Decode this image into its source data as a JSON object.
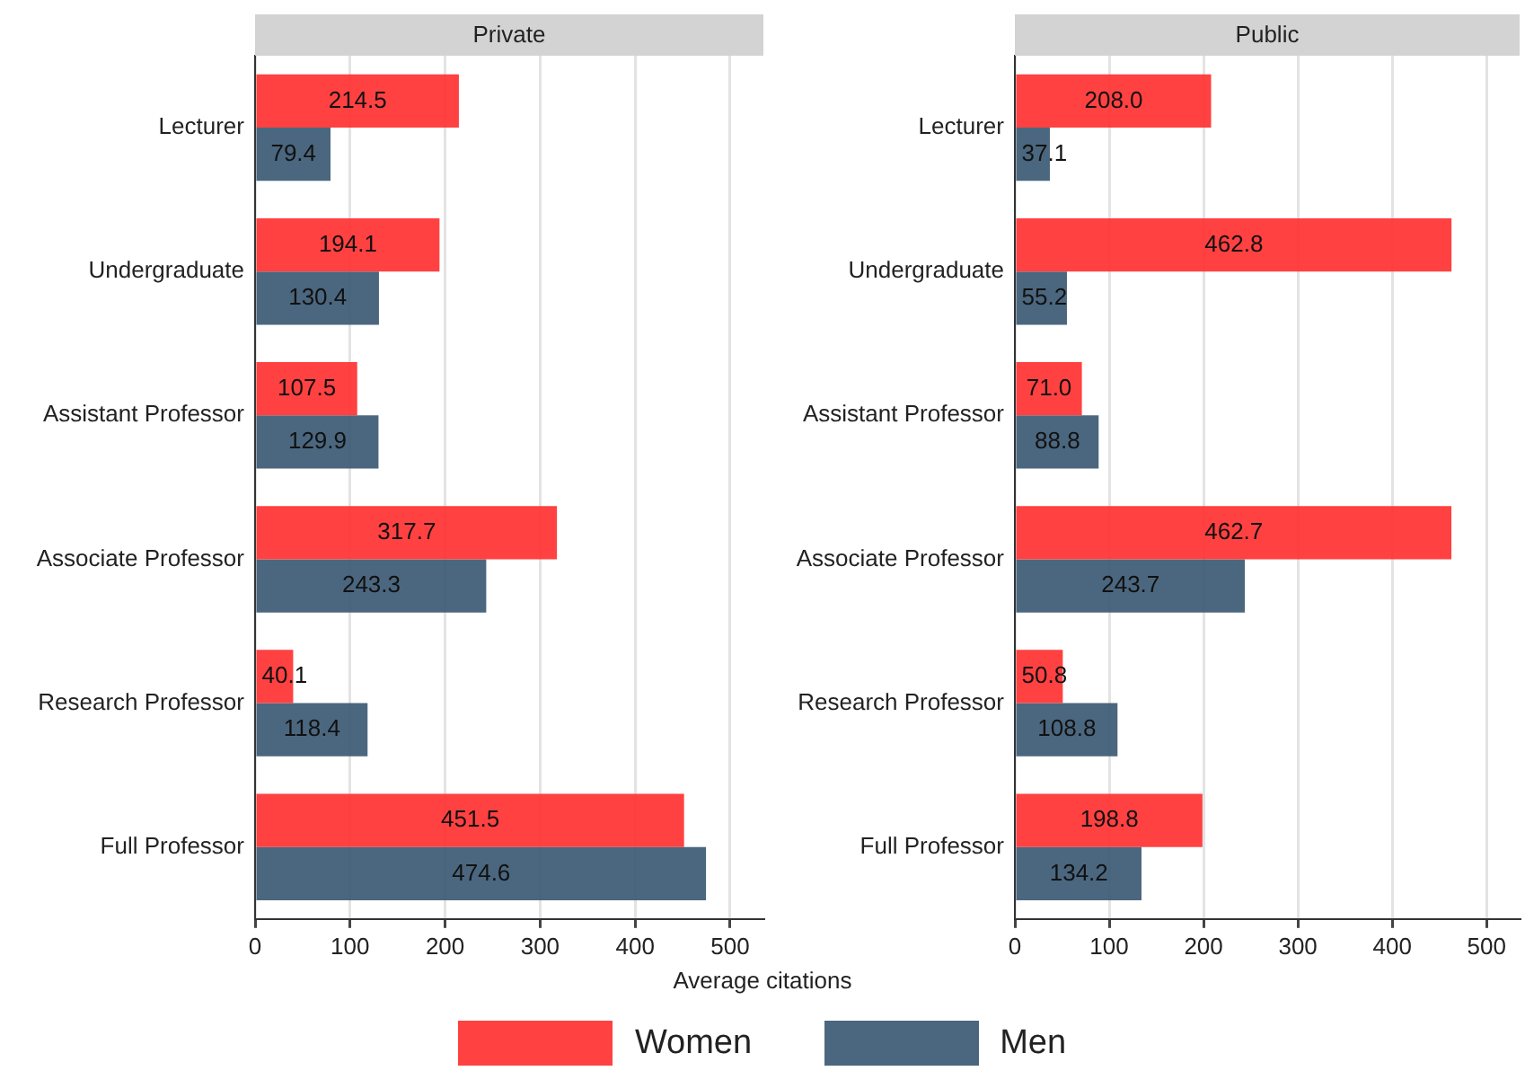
{
  "chart_data": [
    {
      "type": "bar",
      "orientation": "horizontal",
      "title": "Private",
      "xlabel": "Average citations",
      "categories": [
        "Lecturer",
        "Undergraduate",
        "Assistant Professor",
        "Associate Professor",
        "Research Professor",
        "Full Professor"
      ],
      "series": [
        {
          "name": "Women",
          "color": "#ff3333",
          "values": [
            214.5,
            194.1,
            107.5,
            317.7,
            40.1,
            451.5
          ],
          "value_labels": [
            "214.5",
            "194.1",
            "107.5",
            "317.7",
            "40.1",
            "451.5"
          ]
        },
        {
          "name": "Men",
          "color": "#3e5c76",
          "values": [
            79.4,
            130.4,
            129.9,
            243.3,
            118.4,
            474.6
          ],
          "value_labels": [
            "79.4",
            "130.4",
            "129.9",
            "243.3",
            "118.4",
            "474.6"
          ]
        }
      ],
      "xlim": [
        0,
        535
      ],
      "xticks": [
        0,
        100,
        200,
        300,
        400,
        500
      ],
      "grid": "x",
      "legend": "bottom"
    },
    {
      "type": "bar",
      "orientation": "horizontal",
      "title": "Public",
      "categories": [
        "Lecturer",
        "Undergraduate",
        "Assistant Professor",
        "Associate Professor",
        "Research Professor",
        "Full Professor"
      ],
      "series": [
        {
          "color": "#ff3333",
          "values": [
            208.0,
            462.8,
            71.0,
            462.7,
            50.8,
            198.8
          ],
          "value_labels": [
            "208.0",
            "462.8",
            "71.0",
            "462.7",
            "50.8",
            "198.8"
          ]
        },
        {
          "color": "#3e5c76",
          "values": [
            37.1,
            55.2,
            88.8,
            243.7,
            108.8,
            134.2
          ],
          "value_labels": [
            "37.1",
            "55.2",
            "88.8",
            "243.7",
            "108.8",
            "134.2"
          ]
        }
      ],
      "xlim": [
        0,
        535
      ],
      "xticks": [
        0,
        100,
        200,
        300,
        400,
        500
      ],
      "grid": "x"
    }
  ]
}
